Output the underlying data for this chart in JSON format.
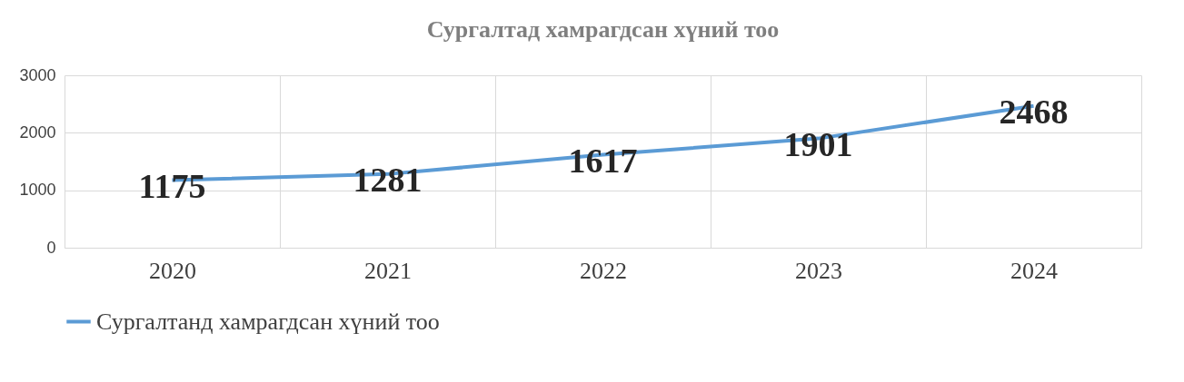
{
  "chart_data": {
    "type": "line",
    "title": "Сургалтад хамрагдсан хүний тоо",
    "categories": [
      "2020",
      "2021",
      "2022",
      "2023",
      "2024"
    ],
    "series": [
      {
        "name": "Сургалтанд хамрагдсан хүний тоо",
        "color": "#5b9bd5",
        "values": [
          1175,
          1281,
          1617,
          1901,
          2468
        ]
      }
    ],
    "ylim": [
      0,
      3000
    ],
    "yticks": [
      0,
      1000,
      2000,
      3000
    ],
    "grid": true,
    "legend": "bottom",
    "data_labels": true,
    "marker": "none",
    "line_style": "solid"
  }
}
